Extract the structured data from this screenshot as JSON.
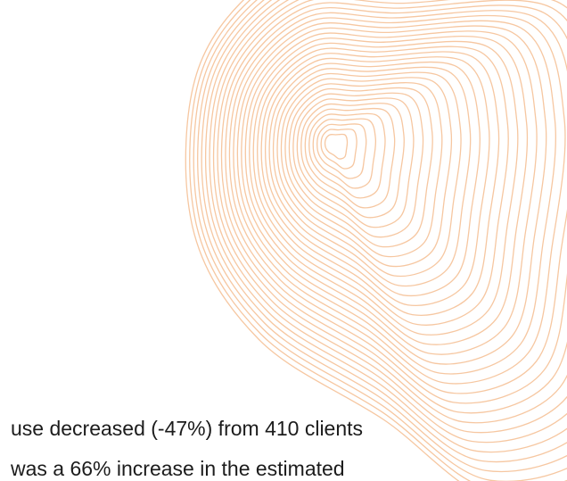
{
  "decoration": {
    "icon": "contour-lines-icon",
    "stroke_color": "#f6c7a1"
  },
  "text": {
    "line1": "use decreased (-47%) from 410 clients",
    "line2": "was a 66% increase in the estimated"
  }
}
